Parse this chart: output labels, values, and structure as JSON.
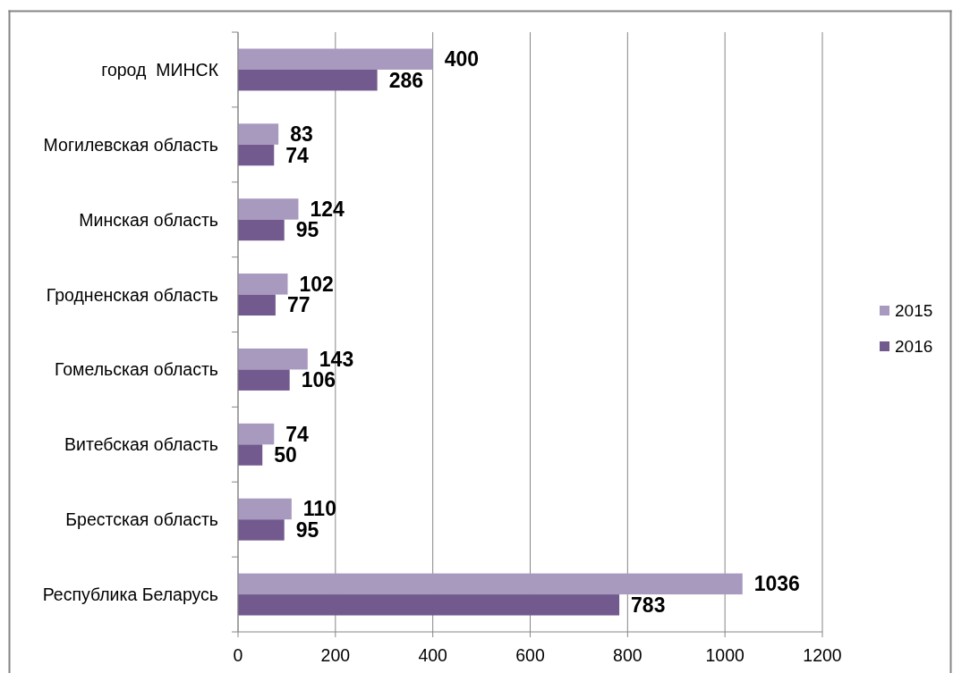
{
  "chart_data": {
    "type": "bar",
    "orientation": "horizontal",
    "categories": [
      "город  МИНСК",
      "Могилевская область",
      "Минская область",
      "Гродненская область",
      "Гомельская область",
      "Витебская область",
      "Брестская область",
      "Республика Беларусь"
    ],
    "series": [
      {
        "name": "2015",
        "color": "#a899bf",
        "values": [
          400,
          83,
          124,
          102,
          143,
          74,
          110,
          1036
        ]
      },
      {
        "name": "2016",
        "color": "#725a8e",
        "values": [
          286,
          74,
          95,
          77,
          106,
          50,
          95,
          783
        ]
      }
    ],
    "xlim": [
      0,
      1200
    ],
    "xticks": [
      0,
      200,
      400,
      600,
      800,
      1000,
      1200
    ],
    "grid": "x",
    "legend": "right",
    "data_labels": true
  }
}
